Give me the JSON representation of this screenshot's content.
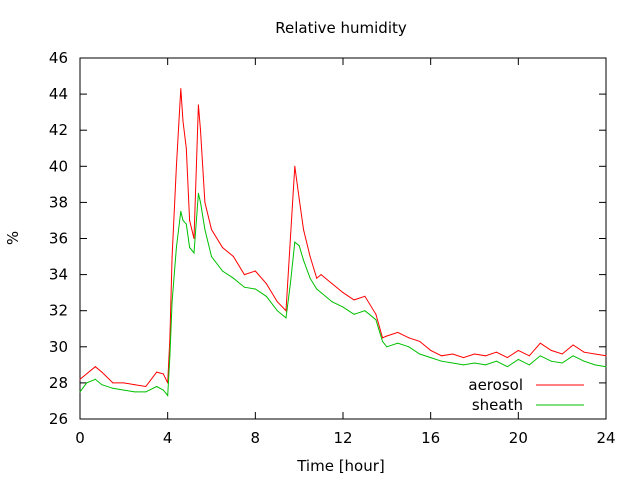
{
  "chart_data": {
    "type": "line",
    "title": "Relative humidity",
    "xlabel": "Time [hour]",
    "ylabel": "%",
    "xlim": [
      0,
      24
    ],
    "ylim": [
      26,
      46
    ],
    "xticks": [
      0,
      4,
      8,
      12,
      16,
      20,
      24
    ],
    "yticks": [
      26,
      28,
      30,
      32,
      34,
      36,
      38,
      40,
      42,
      44,
      46
    ],
    "grid": false,
    "legend_position": "bottom-right",
    "series": [
      {
        "name": "aerosol",
        "color": "#ff0000",
        "x": [
          0,
          0.3,
          0.7,
          1.0,
          1.5,
          2.0,
          2.5,
          3.0,
          3.5,
          3.8,
          4.0,
          4.1,
          4.2,
          4.4,
          4.6,
          4.7,
          4.85,
          5.0,
          5.2,
          5.4,
          5.5,
          5.7,
          6.0,
          6.5,
          7.0,
          7.5,
          8.0,
          8.5,
          9.0,
          9.4,
          9.6,
          9.8,
          10.0,
          10.2,
          10.5,
          10.8,
          11.0,
          11.5,
          12.0,
          12.5,
          13.0,
          13.5,
          13.8,
          14.0,
          14.5,
          15.0,
          15.5,
          16.0,
          16.5,
          17.0,
          17.5,
          18.0,
          18.5,
          19.0,
          19.5,
          20.0,
          20.5,
          21.0,
          21.5,
          22.0,
          22.5,
          23.0,
          23.5,
          24.0
        ],
        "values": [
          28.2,
          28.5,
          28.9,
          28.6,
          28.0,
          28.0,
          27.9,
          27.8,
          28.6,
          28.5,
          28.0,
          30.5,
          35.0,
          40.0,
          44.3,
          42.5,
          41.0,
          37.0,
          36.0,
          43.4,
          42.0,
          38.0,
          36.5,
          35.5,
          35.0,
          34.0,
          34.2,
          33.5,
          32.5,
          32.0,
          36.0,
          40.0,
          38.2,
          36.5,
          35.0,
          33.8,
          34.0,
          33.5,
          33.0,
          32.6,
          32.8,
          31.8,
          30.5,
          30.6,
          30.8,
          30.5,
          30.3,
          29.8,
          29.5,
          29.6,
          29.4,
          29.6,
          29.5,
          29.7,
          29.4,
          29.8,
          29.5,
          30.2,
          29.8,
          29.6,
          30.1,
          29.7,
          29.6,
          29.5
        ]
      },
      {
        "name": "sheath",
        "color": "#00c000",
        "x": [
          0,
          0.3,
          0.7,
          1.0,
          1.5,
          2.0,
          2.5,
          3.0,
          3.5,
          3.8,
          4.0,
          4.1,
          4.2,
          4.4,
          4.6,
          4.7,
          4.85,
          5.0,
          5.2,
          5.4,
          5.5,
          5.7,
          6.0,
          6.5,
          7.0,
          7.5,
          8.0,
          8.5,
          9.0,
          9.4,
          9.6,
          9.8,
          10.0,
          10.2,
          10.5,
          10.8,
          11.0,
          11.5,
          12.0,
          12.5,
          13.0,
          13.5,
          13.8,
          14.0,
          14.5,
          15.0,
          15.5,
          16.0,
          16.5,
          17.0,
          17.5,
          18.0,
          18.5,
          19.0,
          19.5,
          20.0,
          20.5,
          21.0,
          21.5,
          22.0,
          22.5,
          23.0,
          23.5,
          24.0
        ],
        "values": [
          27.5,
          28.0,
          28.2,
          27.9,
          27.7,
          27.6,
          27.5,
          27.5,
          27.8,
          27.6,
          27.3,
          29.5,
          32.5,
          35.5,
          37.5,
          37.0,
          36.8,
          35.5,
          35.2,
          38.5,
          38.0,
          36.5,
          35.0,
          34.2,
          33.8,
          33.3,
          33.2,
          32.8,
          32.0,
          31.6,
          33.5,
          35.8,
          35.6,
          34.8,
          33.8,
          33.2,
          33.0,
          32.5,
          32.2,
          31.8,
          32.0,
          31.5,
          30.3,
          30.0,
          30.2,
          30.0,
          29.6,
          29.4,
          29.2,
          29.1,
          29.0,
          29.1,
          29.0,
          29.2,
          28.9,
          29.3,
          29.0,
          29.5,
          29.2,
          29.1,
          29.5,
          29.2,
          29.0,
          28.9
        ]
      }
    ]
  }
}
